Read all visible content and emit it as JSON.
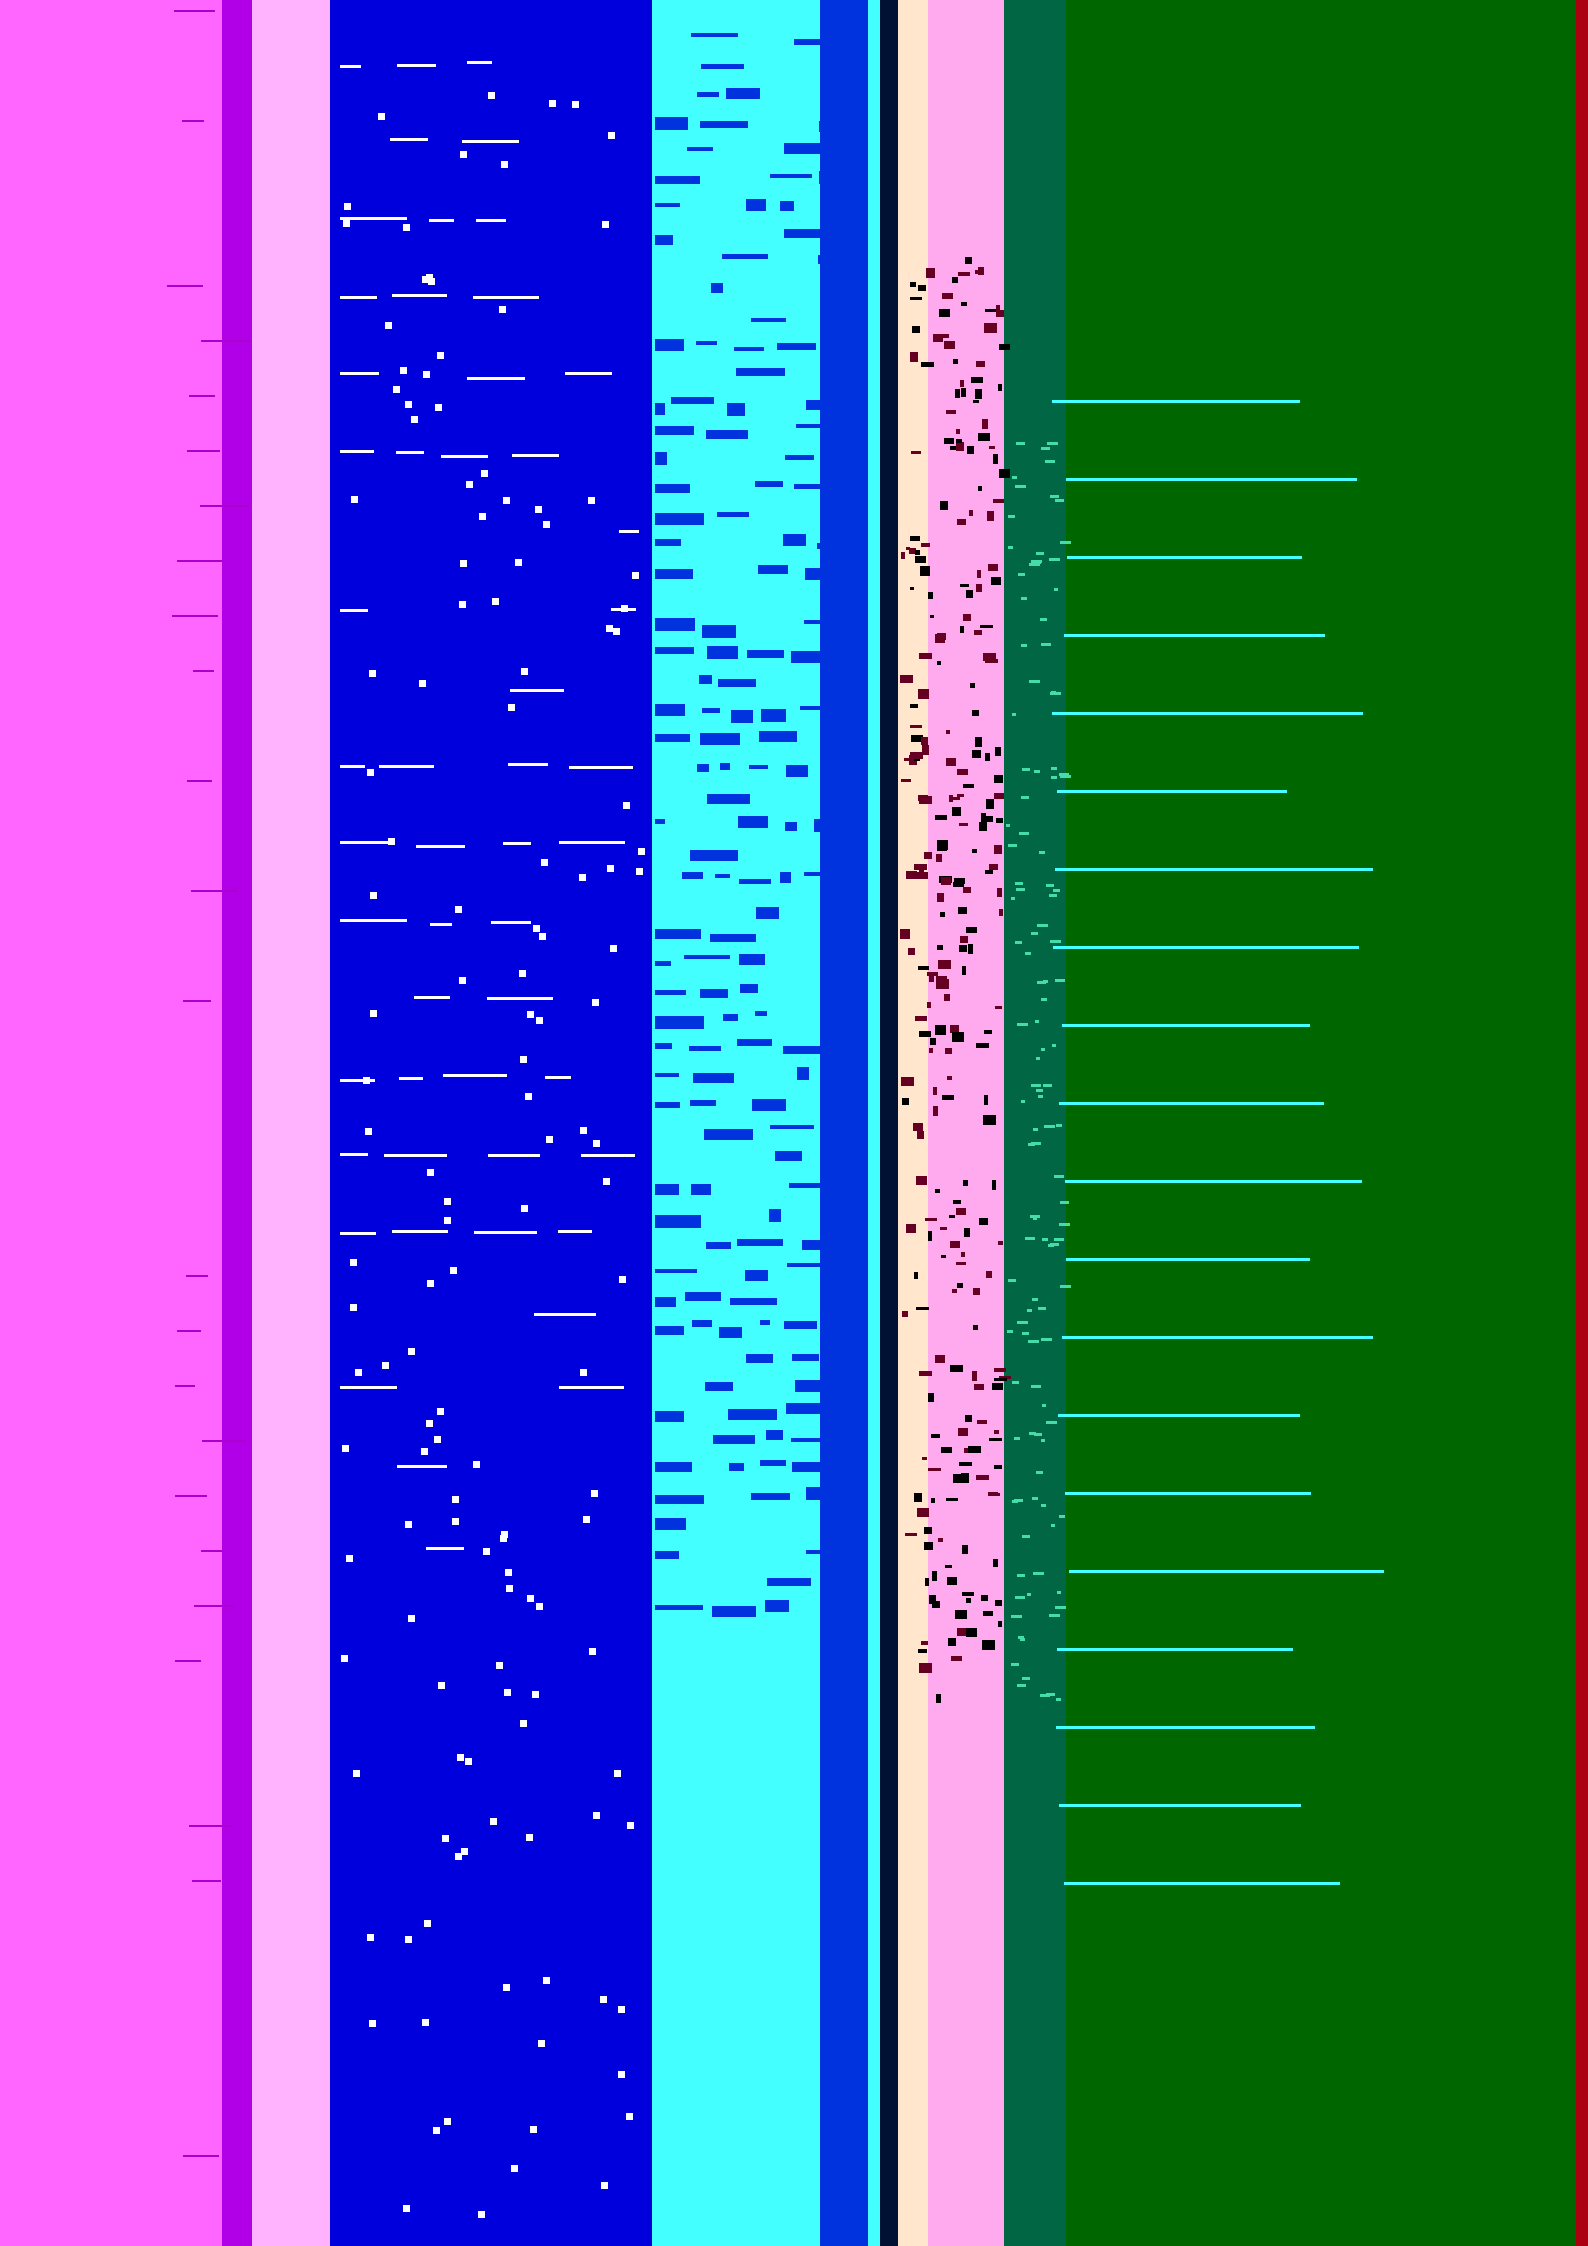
{
  "colors": {
    "magenta": "#ff66ff",
    "purple": "#b100e8",
    "pink_light": "#ffb3ff",
    "blue": "#0000dd",
    "cyan": "#44ffff",
    "royal_blue": "#0033dd",
    "navy": "#001133",
    "cream": "#ffe6cc",
    "pink": "#ffaaee",
    "teal": "#006644",
    "green": "#006600",
    "red": "#aa0011",
    "black": "#000000",
    "white": "#ffffff"
  }
}
